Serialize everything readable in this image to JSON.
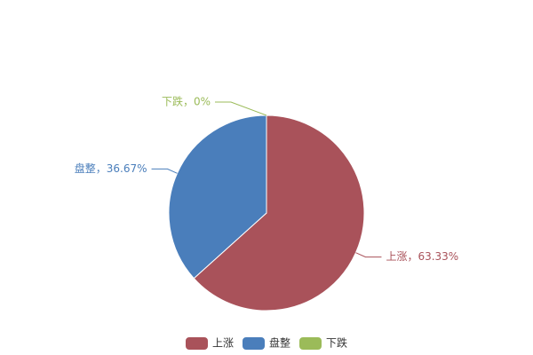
{
  "chart_data": {
    "type": "pie",
    "categories": [
      "上涨",
      "盘整",
      "下跌"
    ],
    "values": [
      63.33,
      36.67,
      0
    ],
    "value_labels": [
      "上涨，63.33%",
      "盘整，36.67%",
      "下跌，0%"
    ],
    "colors": [
      "#a9525a",
      "#4a7ebb",
      "#9bbb59"
    ]
  }
}
